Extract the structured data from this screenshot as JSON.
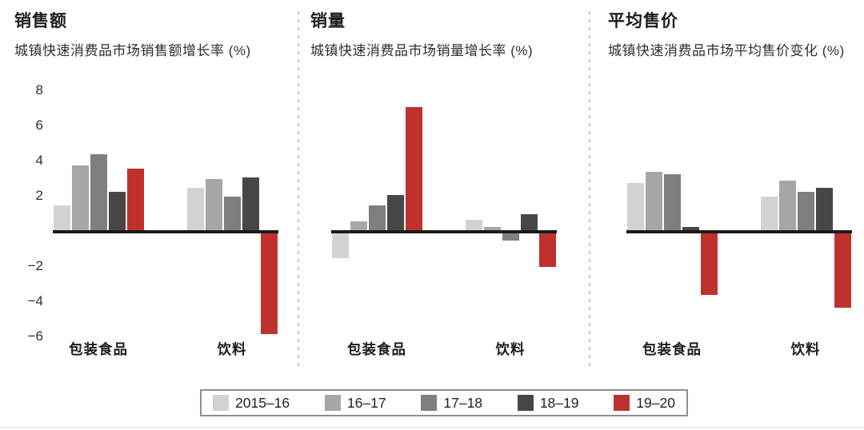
{
  "legend": {
    "items": [
      {
        "label": "2015–16",
        "color": "#d2d2d2"
      },
      {
        "label": "16–17",
        "color": "#a6a6a6"
      },
      {
        "label": "17–18",
        "color": "#7f7f7f"
      },
      {
        "label": "18–19",
        "color": "#474747"
      },
      {
        "label": "19–20",
        "color": "#bf312c"
      }
    ]
  },
  "chart_data": [
    {
      "type": "bar",
      "title": "销售额",
      "subtitle": "城镇快速消费品市场销售额增长率 (%)",
      "categories": [
        "包装食品",
        "饮料"
      ],
      "series": [
        {
          "name": "2015–16",
          "values": [
            1.4,
            2.4
          ]
        },
        {
          "name": "16–17",
          "values": [
            3.7,
            2.9
          ]
        },
        {
          "name": "17–18",
          "values": [
            4.3,
            1.9
          ]
        },
        {
          "name": "18–19",
          "values": [
            2.2,
            3.0
          ]
        },
        {
          "name": "19–20",
          "values": [
            3.5,
            -5.9
          ]
        }
      ],
      "ylim": [
        -6.5,
        8.8
      ],
      "yticks": [
        8,
        6,
        4,
        2,
        -2,
        -4,
        -6
      ],
      "grid": false,
      "legend_position": "bottom-shared"
    },
    {
      "type": "bar",
      "title": "销量",
      "subtitle": "城镇快速消费品市场销量增长率 (%)",
      "categories": [
        "包装食品",
        "饮料"
      ],
      "series": [
        {
          "name": "2015–16",
          "values": [
            -1.6,
            0.6
          ]
        },
        {
          "name": "16–17",
          "values": [
            0.5,
            0.2
          ]
        },
        {
          "name": "17–18",
          "values": [
            1.4,
            -0.6
          ]
        },
        {
          "name": "18–19",
          "values": [
            2.0,
            0.9
          ]
        },
        {
          "name": "19–20",
          "values": [
            7.0,
            -2.1
          ]
        }
      ],
      "ylim": [
        -6.5,
        8.8
      ],
      "yticks": [],
      "grid": false,
      "legend_position": "bottom-shared"
    },
    {
      "type": "bar",
      "title": "平均售价",
      "subtitle": "城镇快速消费品市场平均售价变化 (%)",
      "categories": [
        "包装食品",
        "饮料"
      ],
      "series": [
        {
          "name": "2015–16",
          "values": [
            2.7,
            1.9
          ]
        },
        {
          "name": "16–17",
          "values": [
            3.3,
            2.8
          ]
        },
        {
          "name": "17–18",
          "values": [
            3.2,
            2.2
          ]
        },
        {
          "name": "18–19",
          "values": [
            0.2,
            2.4
          ]
        },
        {
          "name": "19–20",
          "values": [
            -3.7,
            -4.4
          ]
        }
      ],
      "ylim": [
        -6.5,
        8.8
      ],
      "yticks": [],
      "grid": false,
      "legend_position": "bottom-shared"
    }
  ]
}
